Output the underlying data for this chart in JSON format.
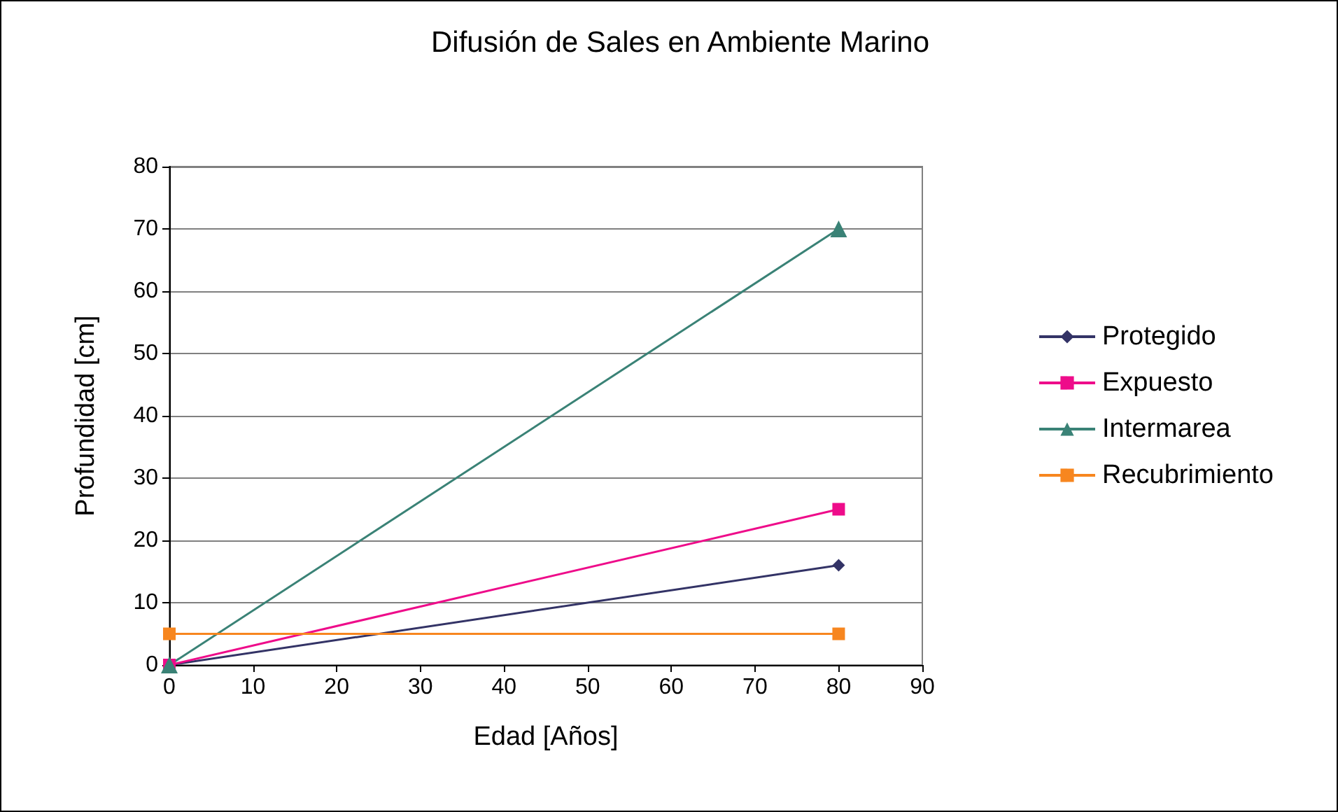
{
  "chart_data": {
    "type": "line",
    "title": "Difusión de Sales en Ambiente Marino",
    "xlabel": "Edad [Años]",
    "ylabel": "Profundidad [cm]",
    "x": [
      0,
      80
    ],
    "series": [
      {
        "name": "Protegido",
        "color": "#333366",
        "values": [
          0,
          16
        ],
        "marker": "diamond"
      },
      {
        "name": "Expuesto",
        "color": "#ee0c8a",
        "values": [
          0,
          25
        ],
        "marker": "square"
      },
      {
        "name": "Intermarea",
        "color": "#3a8276",
        "values": [
          0,
          70
        ],
        "marker": "triangle"
      },
      {
        "name": "Recubrimiento",
        "color": "#f7861f",
        "values": [
          5,
          5
        ],
        "marker": "square"
      }
    ],
    "xlim": [
      0,
      90
    ],
    "xticks": [
      0,
      10,
      20,
      30,
      40,
      50,
      60,
      70,
      80,
      90
    ],
    "ylim": [
      0,
      80
    ],
    "yticks": [
      0,
      10,
      20,
      30,
      40,
      50,
      60,
      70,
      80
    ],
    "grid": "y",
    "legend": "right"
  }
}
